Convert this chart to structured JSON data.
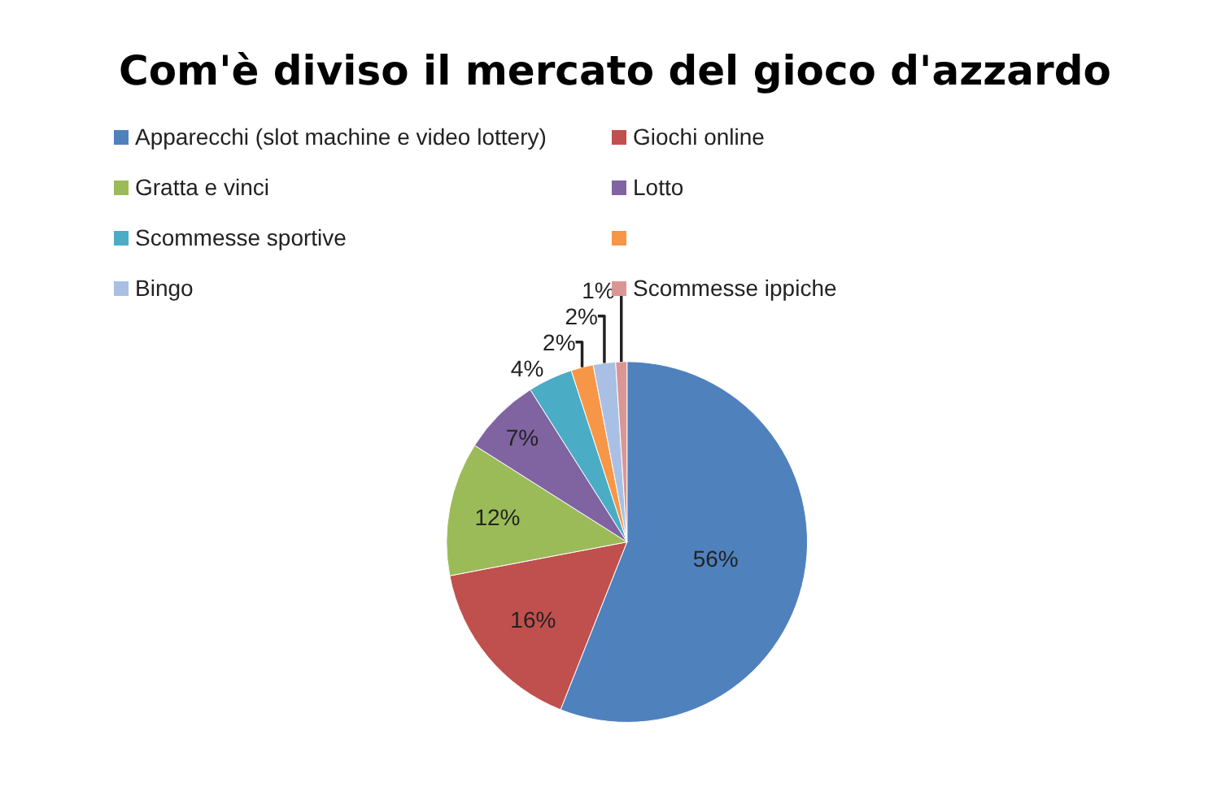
{
  "chart_data": {
    "type": "pie",
    "title": "Com'è diviso il mercato del gioco d'azzardo",
    "categories": [
      "Apparecchi (slot machine e video lottery)",
      "Giochi online",
      "Gratta e vinci",
      "Lotto",
      "Scommesse sportive",
      null,
      "Bingo",
      "Scommesse ippiche"
    ],
    "values": [
      56,
      16,
      12,
      7,
      4,
      2,
      2,
      1
    ],
    "value_labels": [
      "56%",
      "16%",
      "12%",
      "7%",
      "4%",
      "2%",
      "2%",
      "1%"
    ],
    "colors": [
      "#4f81bd",
      "#c0504d",
      "#9bbb59",
      "#8064a2",
      "#4bacc6",
      "#f79646",
      "#a9c0e4",
      "#d99694"
    ],
    "legend": "top"
  }
}
